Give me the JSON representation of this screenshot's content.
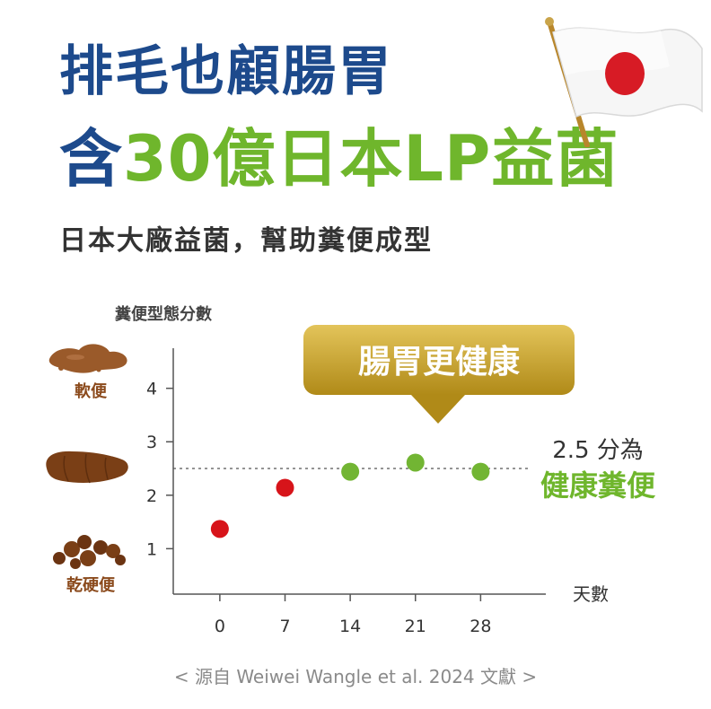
{
  "header": {
    "title_line1": "排毛也顧腸胃",
    "title_line2_prefix": "含",
    "title_line2_highlight": "30億日本LP益菌",
    "subtitle": "日本大廠益菌，幫助糞便成型"
  },
  "badge": {
    "text": "腸胃更健康"
  },
  "annotation": {
    "line1": "2.5 分為",
    "line2": "健康糞便"
  },
  "illustration_labels": {
    "soft": "軟便",
    "hard": "乾硬便"
  },
  "footer": {
    "citation": "< 源自 Weiwei Wangle et al. 2024 文獻 >"
  },
  "colors": {
    "title_blue": "#1d4a8c",
    "accent_green": "#6fb62c",
    "point_red": "#d7141a",
    "point_green": "#72b533",
    "badge_gold": "#c8a323",
    "stool_brown": "#8b4a1c"
  },
  "icons": [
    "japan-flag-icon",
    "soft-stool-icon",
    "normal-stool-icon",
    "hard-stool-icon"
  ],
  "chart_data": {
    "type": "scatter",
    "ylabel": "糞便型態分數",
    "xlabel": "天數",
    "xticks": [
      0,
      7,
      14,
      21,
      28
    ],
    "yticks": [
      1,
      2,
      3,
      4
    ],
    "xlim": [
      -5,
      35
    ],
    "ylim": [
      0.15,
      4.75
    ],
    "reference_line": 2.5,
    "points": [
      {
        "x": 0,
        "y": 1.37,
        "color": "#d7141a"
      },
      {
        "x": 7,
        "y": 2.14,
        "color": "#d7141a"
      },
      {
        "x": 14,
        "y": 2.44,
        "color": "#72b533"
      },
      {
        "x": 21,
        "y": 2.61,
        "color": "#72b533"
      },
      {
        "x": 28,
        "y": 2.44,
        "color": "#72b533"
      }
    ]
  }
}
